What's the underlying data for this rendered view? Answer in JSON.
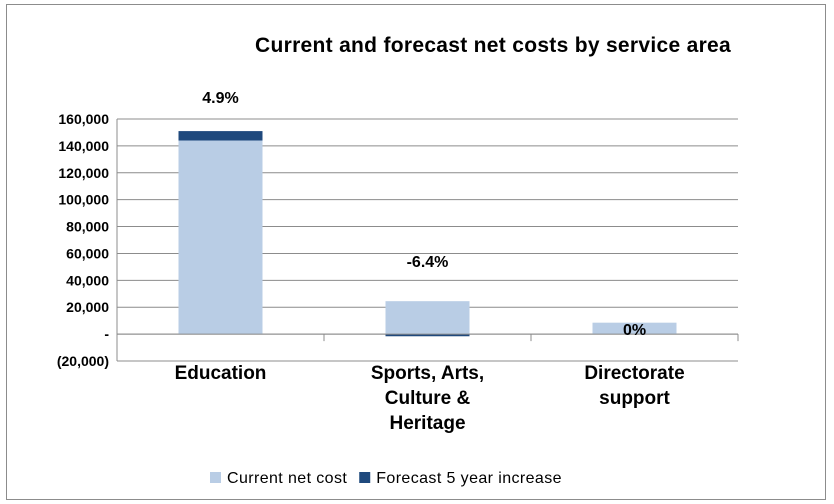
{
  "chart_data": {
    "type": "bar",
    "stacked": true,
    "title": "Current and forecast net costs by service area",
    "categories": [
      [
        "Education"
      ],
      [
        "Sports, Arts,",
        "Culture &",
        "Heritage"
      ],
      [
        "Directorate",
        "support"
      ]
    ],
    "series": [
      {
        "name": "Current net cost",
        "color": "#b9cde5",
        "values": [
          144000,
          24500,
          8500
        ]
      },
      {
        "name": "Forecast 5 year increase",
        "color": "#1f497d",
        "values": [
          7000,
          -1600,
          0
        ]
      }
    ],
    "data_labels": [
      "4.9%",
      "-6.4%",
      "0%"
    ],
    "ylim": [
      -20000,
      160000
    ],
    "yticks": [
      160000,
      140000,
      120000,
      100000,
      80000,
      60000,
      40000,
      20000,
      0,
      -20000
    ],
    "ytick_labels": [
      "160,000",
      "140,000",
      "120,000",
      "100,000",
      "80,000",
      "60,000",
      "40,000",
      "20,000",
      "-",
      "(20,000)"
    ],
    "grid": true,
    "legend_position": "bottom"
  }
}
